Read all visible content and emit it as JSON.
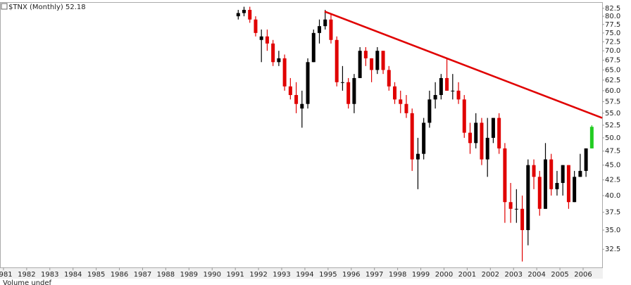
{
  "chart_data": {
    "type": "candlestick",
    "title": "$TNX (Monthly) 52.18",
    "footer": "Volume undef",
    "log_scale": true,
    "x": [
      1991.125,
      1991.375,
      1991.625,
      1991.875,
      1992.125,
      1992.375,
      1992.625,
      1992.875,
      1993.125,
      1993.375,
      1993.625,
      1993.875,
      1994.125,
      1994.375,
      1994.625,
      1994.875,
      1995.125,
      1995.375,
      1995.625,
      1995.875,
      1996.125,
      1996.375,
      1996.625,
      1996.875,
      1997.125,
      1997.375,
      1997.625,
      1997.875,
      1998.125,
      1998.375,
      1998.625,
      1998.875,
      1999.125,
      1999.375,
      1999.625,
      1999.875,
      2000.125,
      2000.375,
      2000.625,
      2000.875,
      2001.125,
      2001.375,
      2001.625,
      2001.875,
      2002.125,
      2002.375,
      2002.625,
      2002.875,
      2003.125,
      2003.375,
      2003.625,
      2003.875,
      2004.125,
      2004.375,
      2004.625,
      2004.875,
      2005.125,
      2005.375,
      2005.625,
      2005.875,
      2006.125,
      2006.375
    ],
    "open": [
      80,
      81,
      82,
      79,
      73,
      74,
      72,
      67,
      68,
      61,
      59,
      56,
      57,
      67,
      75,
      77,
      79,
      73,
      62,
      62,
      57,
      63,
      70,
      68,
      65,
      70,
      65,
      61,
      58,
      57,
      55,
      46,
      47,
      53,
      58,
      59,
      63,
      60,
      60,
      58,
      51,
      49,
      53,
      46,
      50,
      54,
      48,
      39,
      38,
      38,
      35,
      45,
      43,
      38,
      46,
      41,
      42,
      45,
      39,
      43,
      44,
      48
    ],
    "high": [
      82,
      83,
      83,
      80,
      76,
      76,
      73,
      70,
      69,
      63,
      62,
      60,
      68,
      76,
      79,
      82,
      81,
      74,
      66,
      63,
      64,
      71,
      71,
      68,
      71,
      70,
      66,
      62,
      60,
      59,
      56,
      50,
      54,
      60,
      62,
      64,
      68,
      64,
      62,
      59,
      53,
      55,
      54,
      54,
      54,
      55,
      49,
      42,
      41,
      40,
      46,
      46,
      44,
      49,
      47,
      44,
      45,
      45,
      44,
      47,
      48,
      52.5
    ],
    "low": [
      79,
      80,
      78,
      74,
      67,
      70,
      66,
      66,
      60,
      58,
      55,
      52,
      56,
      67,
      72,
      76,
      72,
      61,
      60,
      56,
      55,
      63,
      66,
      62,
      64,
      64,
      60,
      57,
      55,
      54,
      44,
      41,
      46,
      52,
      56,
      58,
      60,
      58,
      57,
      50,
      47,
      48,
      45,
      43,
      49,
      47,
      36,
      36,
      36,
      31,
      33,
      41,
      37,
      38,
      40,
      40,
      40,
      38,
      39,
      43,
      43,
      48
    ],
    "close": [
      81,
      82,
      79,
      75,
      74,
      72,
      67,
      68,
      61,
      59,
      57,
      57,
      67,
      75,
      77,
      79,
      73,
      62,
      62,
      57,
      63,
      70,
      68,
      65,
      70,
      65,
      61,
      58,
      57,
      55,
      46,
      47,
      53,
      58,
      59,
      63,
      60,
      60,
      58,
      51,
      49,
      53,
      46,
      50,
      54,
      48,
      39,
      38,
      38,
      35,
      45,
      43,
      38,
      46,
      41,
      42,
      45,
      39,
      43,
      44,
      48,
      52.18
    ],
    "up_color": "#000000",
    "down_color": "#e00000",
    "last_color": "#22cc22",
    "xlim": [
      1980.85,
      2006.82
    ],
    "xticks": [
      1981,
      1982,
      1983,
      1984,
      1985,
      1986,
      1987,
      1988,
      1989,
      1990,
      1991,
      1992,
      1993,
      1994,
      1995,
      1996,
      1997,
      1998,
      1999,
      2000,
      2001,
      2002,
      2003,
      2004,
      2005,
      2006
    ],
    "ylim": [
      30.3,
      84.5
    ],
    "yticks": [
      32.5,
      {
        "value": 35,
        "label": "35.0"
      },
      37.5,
      {
        "value": 40,
        "label": "40.0"
      },
      42.5,
      {
        "value": 45,
        "label": "45.0"
      },
      47.5,
      {
        "value": 50,
        "label": "50.0"
      },
      52.5,
      {
        "value": 55,
        "label": "55.0"
      },
      57.5,
      {
        "value": 60,
        "label": "60.0"
      },
      62.5,
      {
        "value": 65,
        "label": "65.0"
      },
      67.5,
      {
        "value": 70,
        "label": "70.0"
      },
      72.5,
      {
        "value": 75,
        "label": "75.0"
      },
      77.5,
      {
        "value": 80,
        "label": "80.0"
      },
      82.5
    ],
    "trendline": {
      "x": [
        1994.85,
        2006.82
      ],
      "y": [
        81.5,
        54
      ],
      "color": "#e00000"
    }
  }
}
